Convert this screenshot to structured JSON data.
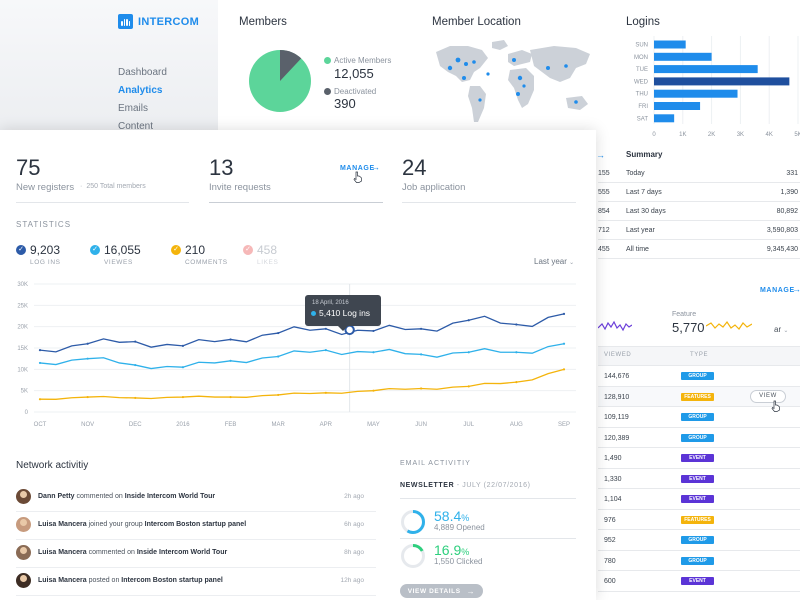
{
  "brand": {
    "name": "INTERCOM",
    "color": "#1f8ceb"
  },
  "nav": {
    "items": [
      {
        "label": "Dashboard",
        "active": false
      },
      {
        "label": "Analytics",
        "active": true
      },
      {
        "label": "Emails",
        "active": false
      },
      {
        "label": "Content",
        "active": false
      }
    ]
  },
  "members": {
    "title": "Members",
    "active": {
      "label": "Active Members",
      "value": "12,055",
      "color": "#5cd59a"
    },
    "deactivated": {
      "label": "Deactivated",
      "value": "390",
      "color": "#5a616b"
    },
    "pie_fraction_active": 0.88
  },
  "location": {
    "title": "Member Location"
  },
  "logins": {
    "title": "Logins",
    "days": [
      "SUN",
      "MON",
      "TUE",
      "WED",
      "THU",
      "FRI",
      "SAT"
    ],
    "values": [
      1100,
      2000,
      3600,
      4700,
      2900,
      1600,
      700
    ],
    "highlight": "WED",
    "ticks": [
      "0",
      "1K",
      "2K",
      "3K",
      "4K",
      "5K"
    ],
    "xmax": 5000
  },
  "summary": {
    "title": "Summary",
    "rows": [
      {
        "a": "155",
        "label": "Today",
        "value": "331"
      },
      {
        "a": "555",
        "label": "Last 7 days",
        "value": "1,390"
      },
      {
        "a": "854",
        "label": "Last 30 days",
        "value": "80,892"
      },
      {
        "a": "712",
        "label": "Last year",
        "value": "3,590,803"
      },
      {
        "a": "455",
        "label": "All time",
        "value": "9,345,430"
      }
    ]
  },
  "feature": {
    "manage_label": "MANAGE",
    "label": "Feature",
    "value": "5,770",
    "select": "ar"
  },
  "content_table": {
    "headers": [
      "VIEWED",
      "TYPE"
    ],
    "view_label": "VIEW",
    "rows": [
      {
        "viewed": "144,676",
        "type": "GROUP"
      },
      {
        "viewed": "128,910",
        "type": "FEATURES"
      },
      {
        "viewed": "109,119",
        "type": "GROUP"
      },
      {
        "viewed": "120,389",
        "type": "GROUP"
      },
      {
        "viewed": "1,490",
        "type": "EVENT"
      },
      {
        "viewed": "1,330",
        "type": "EVENT"
      },
      {
        "viewed": "1,104",
        "type": "EVENT"
      },
      {
        "viewed": "976",
        "type": "FEATURES"
      },
      {
        "viewed": "952",
        "type": "GROUP"
      },
      {
        "viewed": "780",
        "type": "GROUP"
      },
      {
        "viewed": "600",
        "type": "EVENT"
      }
    ]
  },
  "kpis": {
    "registers": {
      "value": "75",
      "label": "New registers",
      "sub": "250 Total members"
    },
    "invites": {
      "value": "13",
      "label": "Invite requests",
      "manage": "MANAGE"
    },
    "jobs": {
      "value": "24",
      "label": "Job application"
    }
  },
  "statistics": {
    "title": "STATISTICS",
    "period": "Last year",
    "items": [
      {
        "value": "9,203",
        "label": "LOG INS",
        "color": "#2d5ba8"
      },
      {
        "value": "16,055",
        "label": "VIEWES",
        "color": "#2fb1ea"
      },
      {
        "value": "210",
        "label": "COMMENTS",
        "color": "#f4b40c"
      },
      {
        "value": "458",
        "label": "LIKES",
        "color": "#f6b8b8"
      }
    ]
  },
  "chart_data": {
    "type": "line",
    "x": [
      "OCT",
      "NOV",
      "DEC",
      "2016",
      "FEB",
      "MAR",
      "APR",
      "MAY",
      "JUN",
      "JUL",
      "AUG",
      "SEP"
    ],
    "yticks": [
      "0",
      "5K",
      "10K",
      "15K",
      "20K",
      "25K",
      "30K"
    ],
    "ylim": [
      0,
      30000
    ],
    "series": [
      {
        "name": "LOG INS",
        "color": "#2d5ba8",
        "values": [
          14500,
          16000,
          16500,
          15500,
          17000,
          18500,
          19500,
          19000,
          19500,
          21500,
          20500,
          23000
        ]
      },
      {
        "name": "VIEWES",
        "color": "#2fb1ea",
        "values": [
          11500,
          12500,
          11000,
          10500,
          12000,
          13000,
          14500,
          14000,
          13500,
          14000,
          14000,
          16000
        ]
      },
      {
        "name": "COMMENTS",
        "color": "#f4b40c",
        "values": [
          3000,
          3500,
          3300,
          3500,
          3500,
          4000,
          4500,
          5000,
          5500,
          6000,
          7000,
          10000
        ]
      }
    ],
    "tooltip": {
      "date": "18 April, 2016",
      "value": "5,410 Log ins"
    }
  },
  "network": {
    "title": "Network activitiy",
    "rows": [
      {
        "user": "Dann Petty",
        "action": "commented on",
        "target": "Inside Intercom World Tour",
        "time": "2h ago"
      },
      {
        "user": "Luisa Mancera",
        "action": "joined your group",
        "target": "Intercom Boston startup panel",
        "time": "6h ago"
      },
      {
        "user": "Luisa Mancera",
        "action": "commented on",
        "target": "Inside Intercom World Tour",
        "time": "8h ago"
      },
      {
        "user": "Luisa Mancera",
        "action": "posted on",
        "target": "Intercom Boston startup panel",
        "time": "12h ago"
      }
    ]
  },
  "email": {
    "title": "EMAIL ACTIVITIY",
    "newsletter": "NEWSLETTER",
    "newsletter_date": "- JULY (22/07/2016)",
    "opened": {
      "pct": "58.4",
      "unit": "%",
      "sub": "4,889 Opened",
      "color": "#2fb1ea",
      "fraction": 0.584
    },
    "clicked": {
      "pct": "16.9",
      "unit": "%",
      "sub": "1,550 Clicked",
      "color": "#2ecf7e",
      "fraction": 0.169
    },
    "button": "VIEW DETAILS"
  }
}
